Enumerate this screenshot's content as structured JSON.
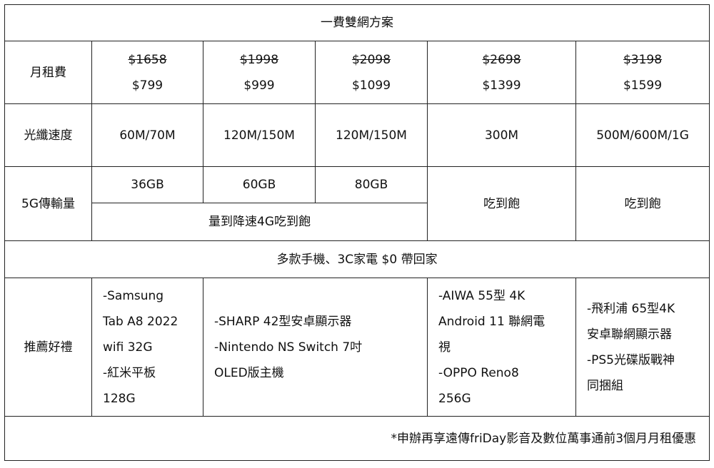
{
  "title": "一費雙網方案",
  "rows": {
    "monthly_fee": {
      "label": "月租費",
      "plans": [
        {
          "original": "$1658",
          "price": "$799"
        },
        {
          "original": "$1998",
          "price": "$999"
        },
        {
          "original": "$2098",
          "price": "$1099"
        },
        {
          "original": "$2698",
          "price": "$1399"
        },
        {
          "original": "$3198",
          "price": "$1599"
        }
      ]
    },
    "fiber_speed": {
      "label": "光纖速度",
      "values": [
        "60M/70M",
        "120M/150M",
        "120M/150M",
        "300M",
        "500M/600M/1G"
      ]
    },
    "data_5g": {
      "label": "5G傳輸量",
      "values": [
        "36GB",
        "60GB",
        "80GB",
        "吃到飽",
        "吃到飽"
      ],
      "after_limit": "量到降速4G吃到飽"
    },
    "promo_banner": "多款手機、3C家電 $0 帶回家",
    "gifts": {
      "label": "推薦好禮",
      "plans": [
        [
          "-Samsung",
          "Tab A8 2022",
          "wifi 32G",
          "-紅米平板",
          "128G"
        ],
        [
          "-SHARP 42型安卓顯示器",
          "-Nintendo NS Switch 7吋",
          "OLED版主機"
        ],
        [
          "-AIWA 55型 4K",
          "Android 11 聯網電",
          "視",
          "-OPPO Reno8",
          "256G"
        ],
        [
          "-飛利浦 65型4K",
          "安卓聯網顯示器",
          "-PS5光碟版戰神",
          "同捆組"
        ]
      ]
    },
    "footnote": "*申辦再享遠傳friDay影音及數位萬事通前3個月月租優惠"
  }
}
